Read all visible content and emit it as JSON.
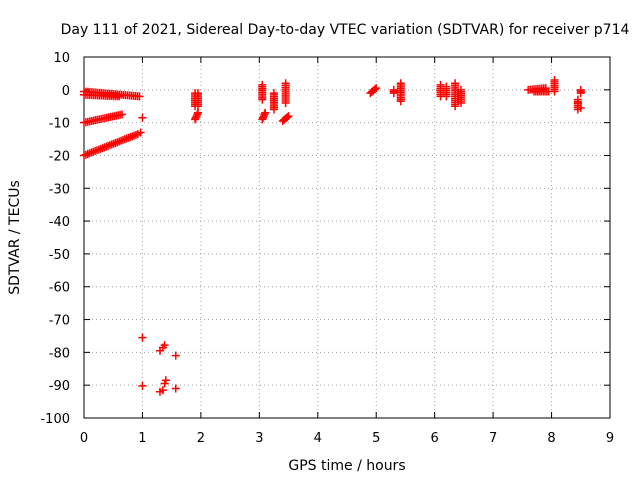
{
  "chart_data": {
    "type": "scatter",
    "title": "Day 111 of 2021, Sidereal Day-to-day VTEC variation (SDTVAR) for receiver p714",
    "xlabel": "GPS time / hours",
    "ylabel": "SDTVAR / TECUs",
    "xlim": [
      0,
      9
    ],
    "ylim": [
      -100,
      10
    ],
    "xticks": [
      0,
      1,
      2,
      3,
      4,
      5,
      6,
      7,
      8,
      9
    ],
    "yticks": [
      10,
      0,
      -10,
      -20,
      -30,
      -40,
      -50,
      -60,
      -70,
      -80,
      -90,
      -100
    ],
    "grid": true,
    "marker": "+",
    "series": [
      {
        "name": "SDTVAR",
        "color": "#ff0000",
        "segments": [
          {
            "x0": 0.0,
            "y0": -0.5,
            "x1": 0.95,
            "y1": -2.0
          },
          {
            "x0": 0.0,
            "y0": -1.5,
            "x1": 0.6,
            "y1": -2.0
          },
          {
            "x0": 0.0,
            "y0": -10.0,
            "x1": 0.65,
            "y1": -7.5
          },
          {
            "x0": 0.0,
            "y0": -20.0,
            "x1": 0.92,
            "y1": -13.5
          },
          {
            "x0": 1.9,
            "y0": -9.0,
            "x1": 1.95,
            "y1": -7.0
          },
          {
            "x0": 1.9,
            "y0": -5.0,
            "x1": 1.9,
            "y1": -1.0
          },
          {
            "x0": 1.95,
            "y0": -5.0,
            "x1": 1.95,
            "y1": -1.0
          },
          {
            "x0": 3.05,
            "y0": -9.0,
            "x1": 3.1,
            "y1": -7.0
          },
          {
            "x0": 3.05,
            "y0": -3.0,
            "x1": 3.05,
            "y1": 1.5
          },
          {
            "x0": 3.25,
            "y0": -6.0,
            "x1": 3.25,
            "y1": -1.0
          },
          {
            "x0": 3.45,
            "y0": -4.0,
            "x1": 3.45,
            "y1": 2.0
          },
          {
            "x0": 3.4,
            "y0": -9.5,
            "x1": 3.5,
            "y1": -8.0
          },
          {
            "x0": 4.9,
            "y0": -1.0,
            "x1": 5.0,
            "y1": 0.5
          },
          {
            "x0": 5.3,
            "y0": -1.0,
            "x1": 5.3,
            "y1": 0.0
          },
          {
            "x0": 5.42,
            "y0": -3.5,
            "x1": 5.42,
            "y1": 2.0
          },
          {
            "x0": 6.1,
            "y0": -2.0,
            "x1": 6.1,
            "y1": 1.5
          },
          {
            "x0": 6.2,
            "y0": -2.0,
            "x1": 6.2,
            "y1": 1.0
          },
          {
            "x0": 6.35,
            "y0": -5.0,
            "x1": 6.35,
            "y1": 2.0
          },
          {
            "x0": 6.45,
            "y0": -4.0,
            "x1": 6.45,
            "y1": 0.0
          },
          {
            "x0": 7.6,
            "y0": 0.0,
            "x1": 7.9,
            "y1": 0.5
          },
          {
            "x0": 7.7,
            "y0": -0.5,
            "x1": 7.95,
            "y1": -0.5
          },
          {
            "x0": 8.05,
            "y0": -0.5,
            "x1": 8.05,
            "y1": 3.0
          },
          {
            "x0": 8.45,
            "y0": -6.0,
            "x1": 8.45,
            "y1": -3.0
          },
          {
            "x0": 8.5,
            "y0": -1.0,
            "x1": 8.5,
            "y1": 0.0
          }
        ],
        "points": [
          [
            1.0,
            -75.5
          ],
          [
            1.0,
            -90.2
          ],
          [
            1.0,
            -8.5
          ],
          [
            1.3,
            -79.5
          ],
          [
            1.35,
            -78.5
          ],
          [
            1.38,
            -77.8
          ],
          [
            1.3,
            -92.0
          ],
          [
            1.35,
            -91.5
          ],
          [
            1.38,
            -89.5
          ],
          [
            1.4,
            -88.5
          ],
          [
            1.57,
            -81.0
          ],
          [
            1.57,
            -91.0
          ],
          [
            0.97,
            -13.0
          ],
          [
            8.45,
            -4.0
          ],
          [
            8.5,
            -5.5
          ]
        ]
      }
    ]
  }
}
